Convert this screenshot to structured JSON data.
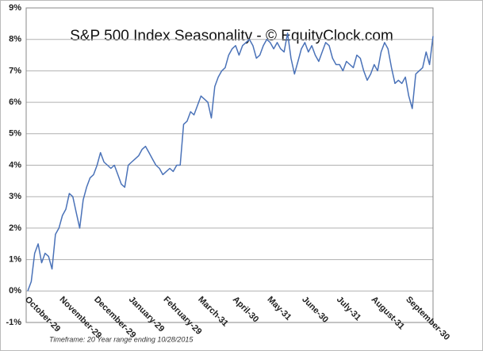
{
  "chart_data": {
    "type": "line",
    "title": "S&P 500 Index Seasonality - © EquityClock.com",
    "annotation": "Timeframe: 20 Year range ending 10/28/2015",
    "categories": [
      "October-29",
      null,
      null,
      null,
      null,
      null,
      null,
      null,
      null,
      null,
      "November-29",
      null,
      null,
      null,
      null,
      null,
      null,
      null,
      null,
      null,
      "December-29",
      null,
      null,
      null,
      null,
      null,
      null,
      null,
      null,
      null,
      "January-29",
      null,
      null,
      null,
      null,
      null,
      null,
      null,
      null,
      null,
      "February-29",
      null,
      null,
      null,
      null,
      null,
      null,
      null,
      null,
      null,
      "March-31",
      null,
      null,
      null,
      null,
      null,
      null,
      null,
      null,
      null,
      "April-30",
      null,
      null,
      null,
      null,
      null,
      null,
      null,
      null,
      null,
      "May-31",
      null,
      null,
      null,
      null,
      null,
      null,
      null,
      null,
      null,
      "June-30",
      null,
      null,
      null,
      null,
      null,
      null,
      null,
      null,
      null,
      "July-31",
      null,
      null,
      null,
      null,
      null,
      null,
      null,
      null,
      null,
      "August-31",
      null,
      null,
      null,
      null,
      null,
      null,
      null,
      null,
      null,
      "September-30",
      null,
      null,
      null,
      null,
      null,
      null,
      null
    ],
    "series": [
      {
        "color": "#4a72b8",
        "values": [
          0,
          0.3,
          1.2,
          1.5,
          0.9,
          1.2,
          1.1,
          0.7,
          1.8,
          2.0,
          2.4,
          2.6,
          3.1,
          3.0,
          2.5,
          2.0,
          2.9,
          3.3,
          3.6,
          3.7,
          4.0,
          4.4,
          4.1,
          4.0,
          3.9,
          4.0,
          3.7,
          3.4,
          3.3,
          4.0,
          4.1,
          4.2,
          4.3,
          4.5,
          4.6,
          4.4,
          4.2,
          4.0,
          3.9,
          3.7,
          3.8,
          3.9,
          3.8,
          4.0,
          4.0,
          5.3,
          5.4,
          5.7,
          5.6,
          5.9,
          6.2,
          6.1,
          6.0,
          5.5,
          6.5,
          6.8,
          7.0,
          7.1,
          7.5,
          7.7,
          7.8,
          7.5,
          7.8,
          7.9,
          8.0,
          7.8,
          7.4,
          7.5,
          7.8,
          8.0,
          7.9,
          7.7,
          7.9,
          7.7,
          7.6,
          8.2,
          7.4,
          6.9,
          7.3,
          7.7,
          7.9,
          7.6,
          7.8,
          7.5,
          7.3,
          7.6,
          7.9,
          7.8,
          7.4,
          7.2,
          7.2,
          7.0,
          7.3,
          7.2,
          7.1,
          7.5,
          7.4,
          7.0,
          6.7,
          6.9,
          7.2,
          7.0,
          7.6,
          7.9,
          7.7,
          7.1,
          6.6,
          6.7,
          6.6,
          6.8,
          6.2,
          5.8,
          6.9,
          7.0,
          7.1,
          7.6,
          7.2,
          8.1
        ]
      }
    ],
    "ylim": [
      -1,
      9
    ],
    "yticks": [
      {
        "value": -1,
        "label": "-1%"
      },
      {
        "value": 0,
        "label": "0%"
      },
      {
        "value": 1,
        "label": "1%"
      },
      {
        "value": 2,
        "label": "2%"
      },
      {
        "value": 3,
        "label": "3%"
      },
      {
        "value": 4,
        "label": "4%"
      },
      {
        "value": 5,
        "label": "5%"
      },
      {
        "value": 6,
        "label": "6%"
      },
      {
        "value": 7,
        "label": "7%"
      },
      {
        "value": 8,
        "label": "8%"
      },
      {
        "value": 9,
        "label": "9%"
      }
    ],
    "grid": true
  }
}
